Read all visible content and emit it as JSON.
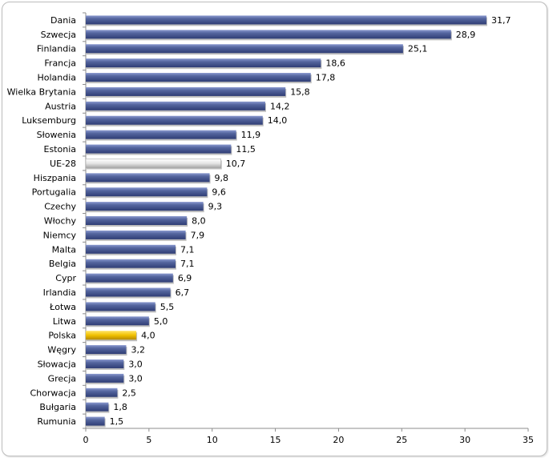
{
  "chart_data": {
    "type": "bar",
    "orientation": "horizontal",
    "categories": [
      "Dania",
      "Szwecja",
      "Finlandia",
      "Francja",
      "Holandia",
      "Wielka Brytania",
      "Austria",
      "Luksemburg",
      "Słowenia",
      "Estonia",
      "UE-28",
      "Hiszpania",
      "Portugalia",
      "Czechy",
      "Włochy",
      "Niemcy",
      "Malta",
      "Belgia",
      "Cypr",
      "Irlandia",
      "Łotwa",
      "Litwa",
      "Polska",
      "Węgry",
      "Słowacja",
      "Grecja",
      "Chorwacja",
      "Bułgaria",
      "Rumunia"
    ],
    "values": [
      31.7,
      28.9,
      25.1,
      18.6,
      17.8,
      15.8,
      14.2,
      14.0,
      11.9,
      11.5,
      10.7,
      9.8,
      9.6,
      9.3,
      8.0,
      7.9,
      7.1,
      7.1,
      6.9,
      6.7,
      5.5,
      5.0,
      4.0,
      3.2,
      3.0,
      3.0,
      2.5,
      1.8,
      1.5
    ],
    "value_labels": [
      "31,7",
      "28,9",
      "25,1",
      "18,6",
      "17,8",
      "15,8",
      "14,2",
      "14,0",
      "11,9",
      "11,5",
      "10,7",
      "9,8",
      "9,6",
      "9,3",
      "8,0",
      "7,9",
      "7,1",
      "7,1",
      "6,9",
      "6,7",
      "5,5",
      "5,0",
      "4,0",
      "3,2",
      "3,0",
      "3,0",
      "2,5",
      "1,8",
      "1,5"
    ],
    "highlight": {
      "UE-28": "#dcdcdc",
      "Polska": "#f0c000"
    },
    "default_color": "#3e4f8e",
    "xlim": [
      0,
      35
    ],
    "xticks": [
      0,
      5,
      10,
      15,
      20,
      25,
      30,
      35
    ],
    "title": "",
    "xlabel": "",
    "ylabel": "",
    "grid": false,
    "legend": "none"
  }
}
